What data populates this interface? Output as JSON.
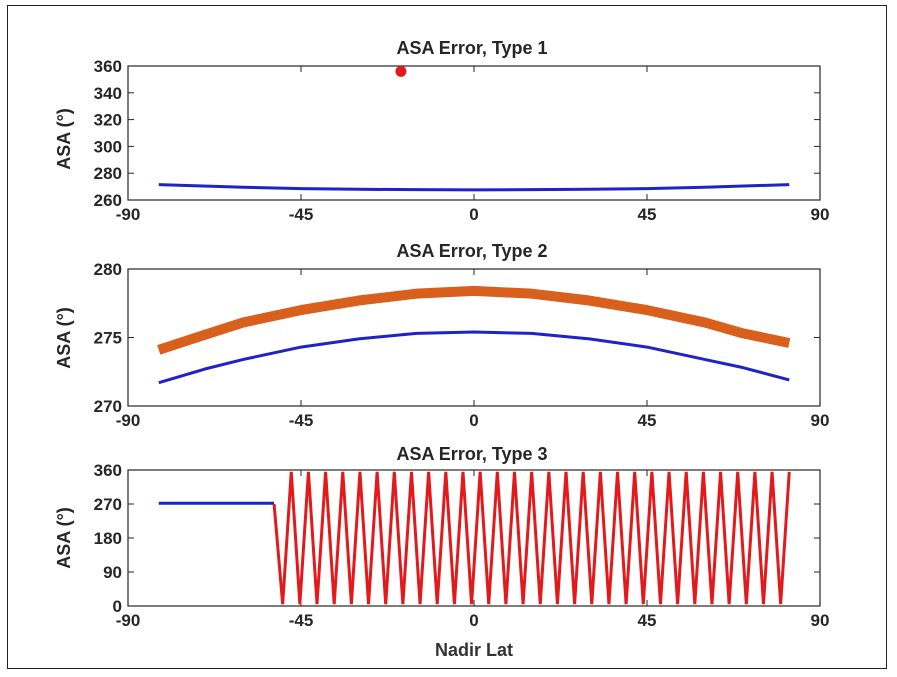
{
  "chart_data": [
    {
      "type": "line",
      "title": "ASA Error, Type 1",
      "ylabel": "ASA (°)",
      "xlabel": "",
      "xlim": [
        -90,
        90
      ],
      "ylim": [
        260,
        360
      ],
      "xticks": [
        "-90",
        "-45",
        "0",
        "45",
        "90"
      ],
      "yticks": [
        "260",
        "280",
        "300",
        "320",
        "340",
        "360"
      ],
      "series": [
        {
          "color": "#1f22c8",
          "kind": "line",
          "x": [
            -82,
            -60,
            -45,
            -30,
            -15,
            0,
            15,
            30,
            45,
            60,
            82
          ],
          "y": [
            271.5,
            269.5,
            268.5,
            268,
            267.7,
            267.6,
            267.7,
            268,
            268.5,
            269.5,
            271.5
          ]
        },
        {
          "color": "#e31a1c",
          "kind": "marker",
          "x": [
            -19
          ],
          "y": [
            356
          ]
        }
      ]
    },
    {
      "type": "line",
      "title": "ASA Error, Type 2",
      "ylabel": "ASA (°)",
      "xlabel": "",
      "xlim": [
        -90,
        90
      ],
      "ylim": [
        270,
        280
      ],
      "xticks": [
        "-90",
        "-45",
        "0",
        "45",
        "90"
      ],
      "yticks": [
        "270",
        "275",
        "280"
      ],
      "series": [
        {
          "color": "#d95f1c",
          "kind": "thick",
          "x": [
            -82,
            -70,
            -60,
            -45,
            -30,
            -15,
            0,
            15,
            30,
            45,
            60,
            70,
            82
          ],
          "y": [
            274.1,
            275.2,
            276.1,
            277.0,
            277.7,
            278.2,
            278.4,
            278.2,
            277.7,
            277.0,
            276.1,
            275.3,
            274.6
          ]
        },
        {
          "color": "#1f22c8",
          "kind": "line",
          "x": [
            -82,
            -70,
            -60,
            -45,
            -30,
            -15,
            0,
            15,
            30,
            45,
            60,
            70,
            82
          ],
          "y": [
            271.7,
            272.7,
            273.4,
            274.3,
            274.9,
            275.3,
            275.4,
            275.3,
            274.9,
            274.3,
            273.4,
            272.8,
            271.9
          ]
        }
      ]
    },
    {
      "type": "line",
      "title": "ASA Error, Type 3",
      "ylabel": "ASA (°)",
      "xlabel": "Nadir Lat",
      "xlim": [
        -90,
        90
      ],
      "ylim": [
        0,
        360
      ],
      "xticks": [
        "-90",
        "-45",
        "0",
        "45",
        "90"
      ],
      "yticks": [
        "0",
        "90",
        "180",
        "270",
        "360"
      ],
      "series": [
        {
          "color": "#1f22c8",
          "kind": "line",
          "x": [
            -82,
            -52
          ],
          "y": [
            272,
            272
          ]
        },
        {
          "color": "#e31a1c",
          "kind": "sawtooth",
          "x_start": -52,
          "x_end": 82,
          "cycles": 30,
          "y_min": 5,
          "y_max": 355
        }
      ]
    }
  ]
}
